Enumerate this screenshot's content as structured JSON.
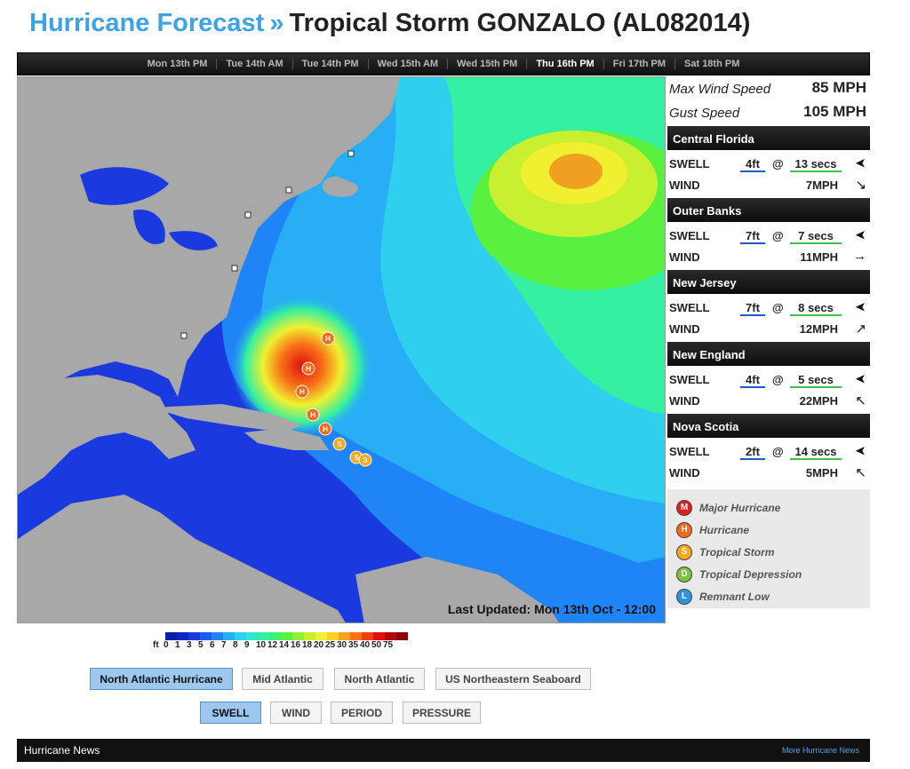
{
  "header": {
    "prefix": "Hurricane Forecast",
    "separator": "»",
    "storm": "Tropical Storm GONZALO (AL082014)"
  },
  "time_tabs": [
    {
      "label": "Mon 13th PM",
      "active": false
    },
    {
      "label": "Tue 14th AM",
      "active": false
    },
    {
      "label": "Tue 14th PM",
      "active": false
    },
    {
      "label": "Wed 15th AM",
      "active": false
    },
    {
      "label": "Wed 15th PM",
      "active": false
    },
    {
      "label": "Thu 16th PM",
      "active": true
    },
    {
      "label": "Fri 17th PM",
      "active": false
    },
    {
      "label": "Sat 18th PM",
      "active": false
    }
  ],
  "stats": {
    "max_wind_label": "Max Wind Speed",
    "max_wind_value": "85 MPH",
    "gust_label": "Gust Speed",
    "gust_value": "105 MPH"
  },
  "locations": [
    {
      "name": "Central Florida",
      "swell": "4ft",
      "period": "13 secs",
      "wind": "7MPH",
      "swell_dir": "➤",
      "wind_dir": "↘"
    },
    {
      "name": "Outer Banks",
      "swell": "7ft",
      "period": "7 secs",
      "wind": "11MPH",
      "swell_dir": "➤",
      "wind_dir": "→"
    },
    {
      "name": "New Jersey",
      "swell": "7ft",
      "period": "8 secs",
      "wind": "12MPH",
      "swell_dir": "➤",
      "wind_dir": "↗"
    },
    {
      "name": "New England",
      "swell": "4ft",
      "period": "5 secs",
      "wind": "22MPH",
      "swell_dir": "➤",
      "wind_dir": "↖"
    },
    {
      "name": "Nova Scotia",
      "swell": "2ft",
      "period": "14 secs",
      "wind": "5MPH",
      "swell_dir": "➤",
      "wind_dir": "↖"
    }
  ],
  "labels": {
    "swell": "SWELL",
    "wind": "WIND",
    "at": "@"
  },
  "legend": [
    {
      "letter": "M",
      "label": "Major Hurricane",
      "color": "#e02020"
    },
    {
      "letter": "H",
      "label": "Hurricane",
      "color": "#f26a1a"
    },
    {
      "letter": "S",
      "label": "Tropical Storm",
      "color": "#f7a81c"
    },
    {
      "letter": "D",
      "label": "Tropical Depression",
      "color": "#7dc242"
    },
    {
      "letter": "L",
      "label": "Remnant Low",
      "color": "#2b95e0"
    }
  ],
  "map": {
    "last_updated": "Last Updated: Mon 13th Oct - 12:00"
  },
  "scale": {
    "unit": "ft",
    "ticks": [
      "0",
      "1",
      "3",
      "5",
      "6",
      "7",
      "8",
      "9",
      "10",
      "12",
      "14",
      "16",
      "18",
      "20",
      "25",
      "30",
      "35",
      "40",
      "50",
      "75"
    ],
    "colors": [
      "#0b1ea8",
      "#1226c8",
      "#1a3ae0",
      "#1a5ef0",
      "#1f84f5",
      "#28aef5",
      "#2fd0ee",
      "#30e8d0",
      "#34f0a0",
      "#3cf070",
      "#5af040",
      "#90f038",
      "#c8f030",
      "#f0f030",
      "#f8d028",
      "#f8a020",
      "#f87018",
      "#f04010",
      "#e01010",
      "#b00808",
      "#8a0505"
    ]
  },
  "regions": [
    "North Atlantic Hurricane",
    "Mid Atlantic",
    "North Atlantic",
    "US Northeastern Seaboard"
  ],
  "layers": [
    "SWELL",
    "WIND",
    "PERIOD",
    "PRESSURE"
  ],
  "news": {
    "title": "Hurricane News",
    "more": "More Hurricane News"
  }
}
